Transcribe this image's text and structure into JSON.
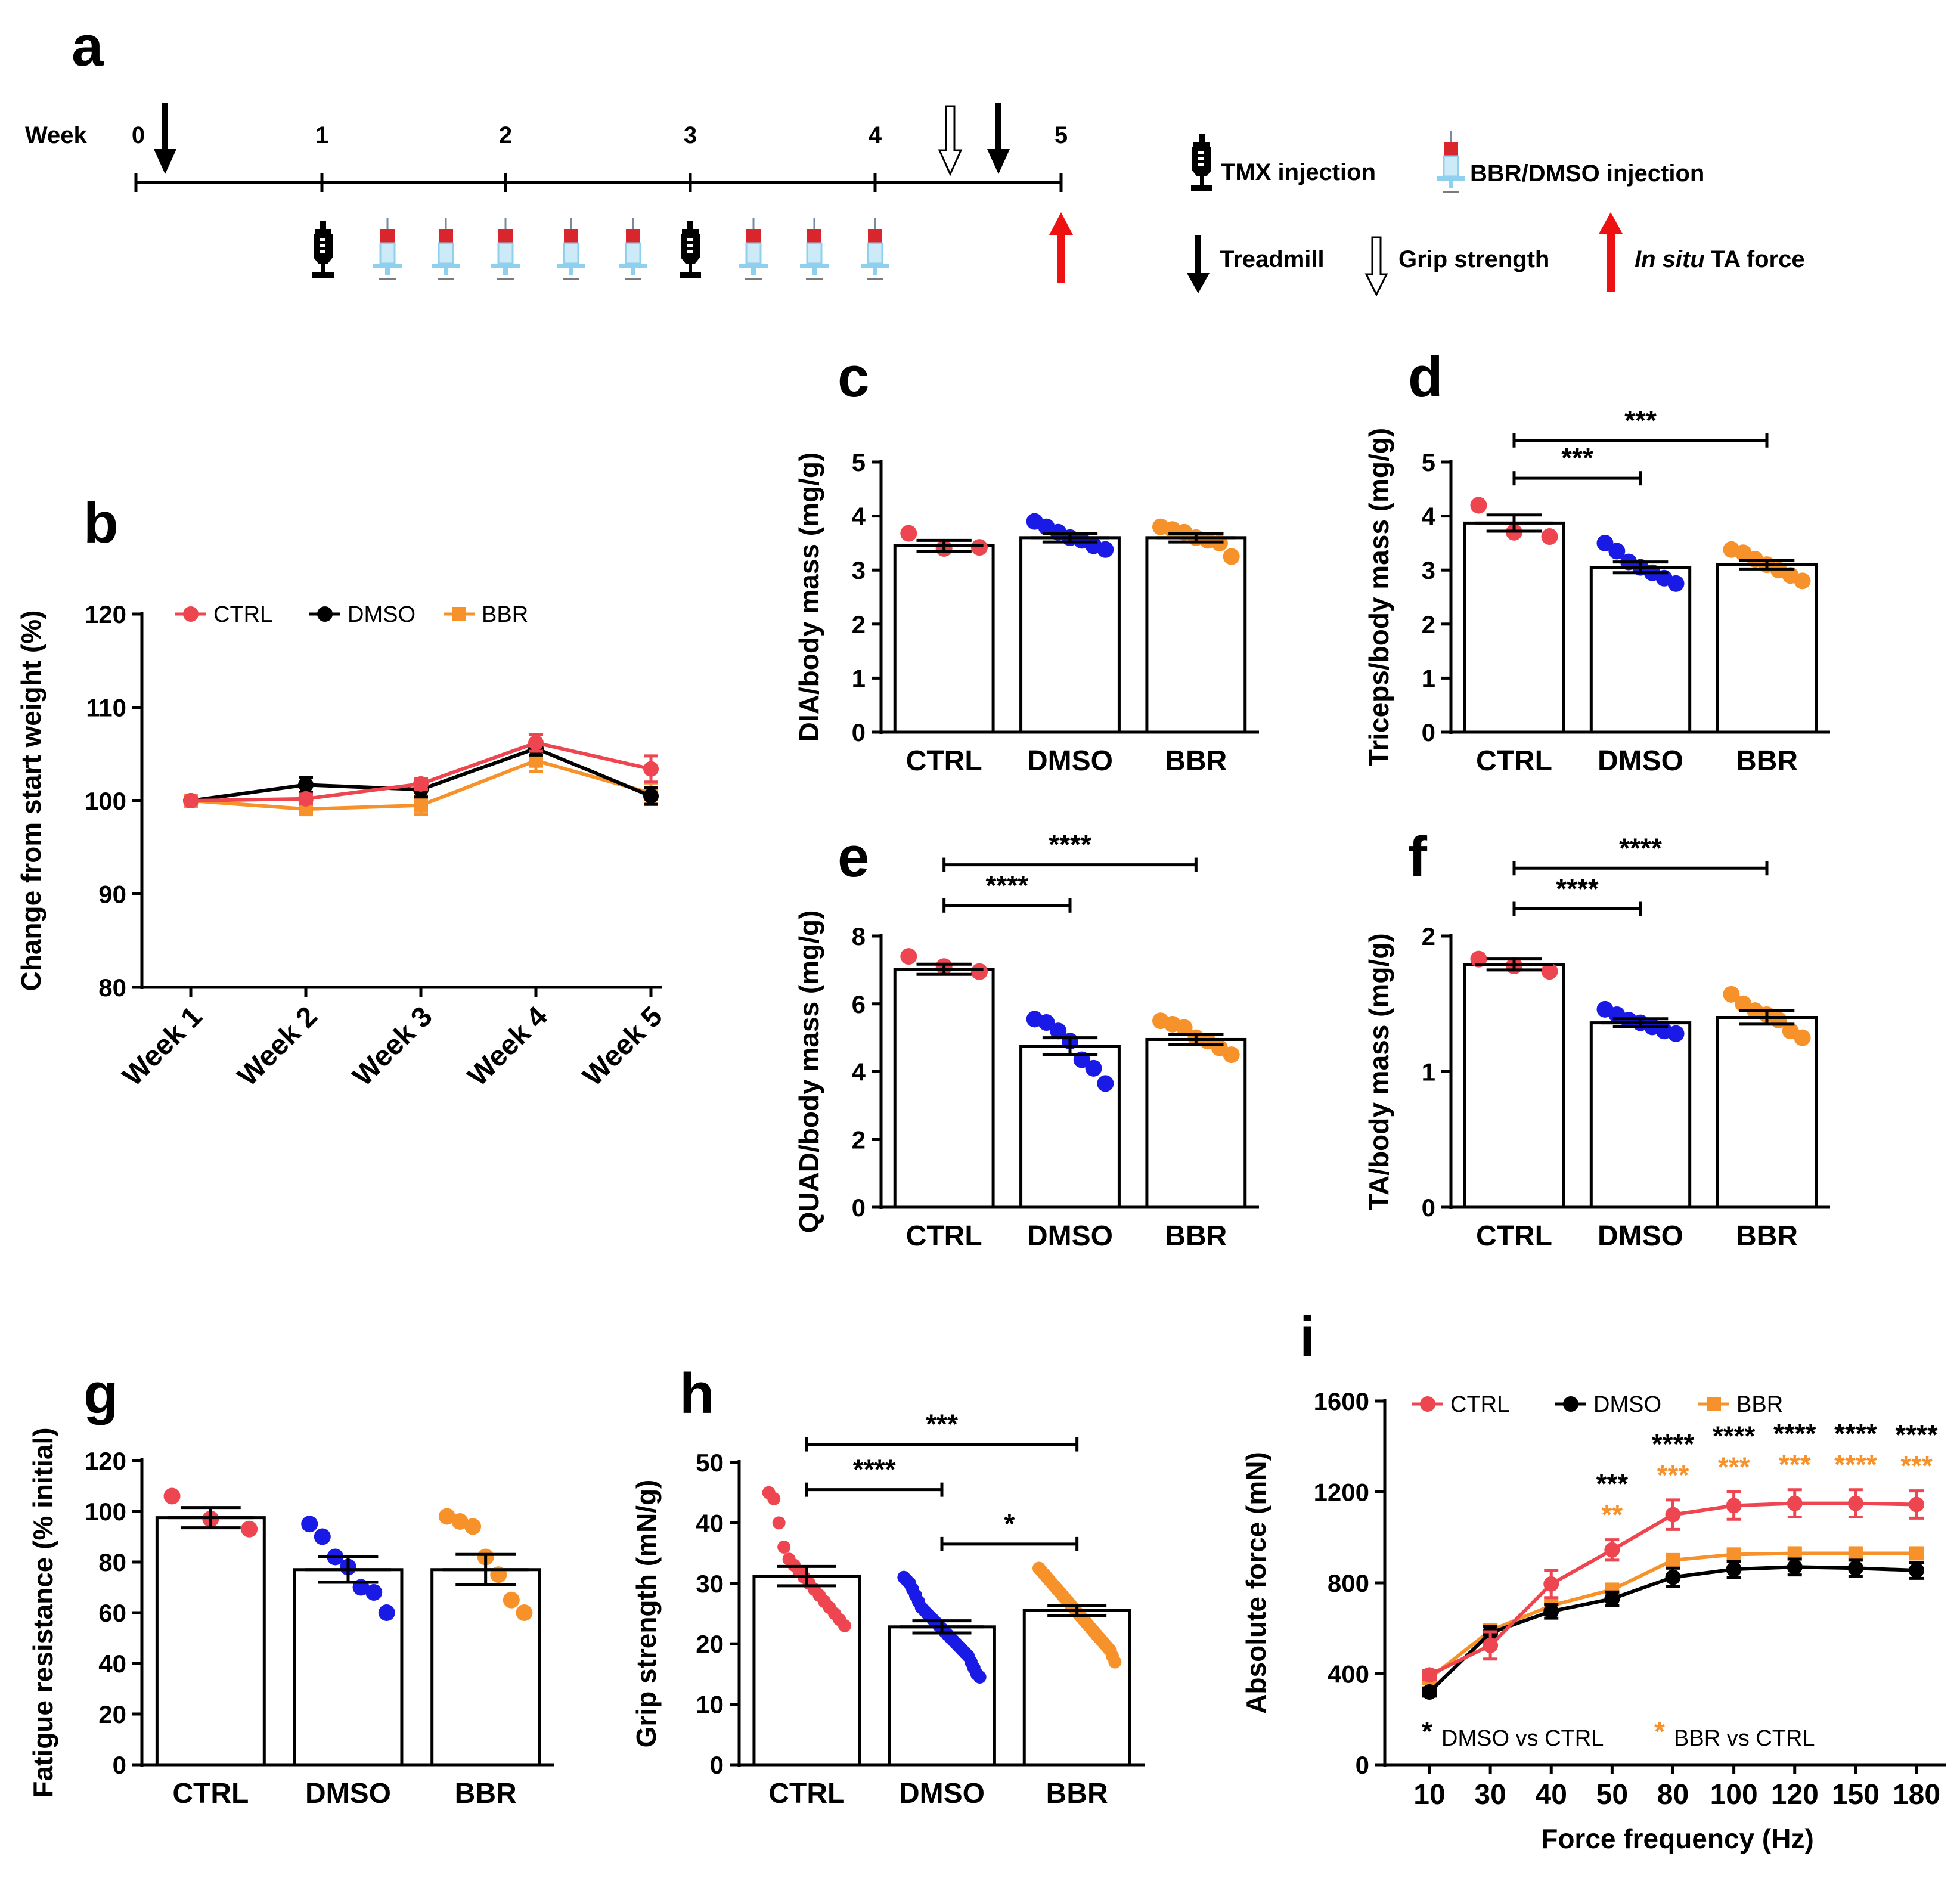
{
  "colors": {
    "ctrl": "#ee4650",
    "dmso": "#1a1ae6",
    "bbr": "#f7912a",
    "black": "#000000",
    "red_arrow": "#ee1111",
    "syringe_blue": "#8fd0ee",
    "syringe_red": "#d8262c"
  },
  "panel_a": {
    "label": "a",
    "week_label": "Week",
    "weeks": [
      "0",
      "1",
      "2",
      "3",
      "4",
      "5"
    ],
    "legend": {
      "tmx": "TMX injection",
      "bbr_dmso": "BBR/DMSO injection",
      "treadmill": "Treadmill",
      "grip": "Grip strength",
      "insitu_italic": "In situ",
      "insitu_rest": "TA force"
    }
  },
  "panels": {
    "b": {
      "label": "b"
    },
    "c": {
      "label": "c"
    },
    "d": {
      "label": "d"
    },
    "e": {
      "label": "e"
    },
    "f": {
      "label": "f"
    },
    "g": {
      "label": "g"
    },
    "h": {
      "label": "h"
    },
    "i": {
      "label": "i"
    }
  },
  "chart_data": [
    {
      "id": "b",
      "type": "line",
      "ylabel": "Change from start weight (%)",
      "categories": [
        "Week 1",
        "Week 2",
        "Week 3",
        "Week 4",
        "Week 5"
      ],
      "yticks": [
        "80",
        "90",
        "100",
        "110",
        "120"
      ],
      "ylim": [
        80,
        120
      ],
      "legend": [
        "CTRL",
        "DMSO",
        "BBR"
      ],
      "series": [
        {
          "name": "CTRL",
          "values": [
            100,
            100.2,
            101.8,
            106.2,
            103.4
          ],
          "err": [
            0.3,
            0.5,
            0.6,
            0.9,
            1.4
          ]
        },
        {
          "name": "DMSO",
          "values": [
            100,
            101.7,
            101.2,
            105.6,
            100.5
          ],
          "err": [
            0.3,
            0.8,
            0.8,
            0.7,
            0.9
          ]
        },
        {
          "name": "BBR",
          "values": [
            100,
            99.1,
            99.5,
            104.3,
            100.8
          ],
          "err": [
            0.3,
            0.6,
            1.0,
            1.2,
            1.1
          ]
        }
      ]
    },
    {
      "id": "c",
      "type": "bar",
      "ylabel": "DIA/body mass (mg/g)",
      "categories": [
        "CTRL",
        "DMSO",
        "BBR"
      ],
      "yticks": [
        "0",
        "1",
        "2",
        "3",
        "4",
        "5"
      ],
      "ylim": [
        0,
        5
      ],
      "values": [
        3.45,
        3.6,
        3.6
      ],
      "err": [
        0.1,
        0.08,
        0.08
      ],
      "points": [
        [
          3.68,
          3.4,
          3.42
        ],
        [
          3.9,
          3.8,
          3.7,
          3.6,
          3.55,
          3.45,
          3.38
        ],
        [
          3.8,
          3.75,
          3.7,
          3.6,
          3.55,
          3.5,
          3.25
        ]
      ],
      "sig": []
    },
    {
      "id": "d",
      "type": "bar",
      "ylabel": "Triceps/body mass (mg/g)",
      "categories": [
        "CTRL",
        "DMSO",
        "BBR"
      ],
      "yticks": [
        "0",
        "1",
        "2",
        "3",
        "4",
        "5"
      ],
      "ylim": [
        0,
        5
      ],
      "values": [
        3.87,
        3.05,
        3.1
      ],
      "err": [
        0.15,
        0.1,
        0.08
      ],
      "points": [
        [
          4.2,
          3.7,
          3.62
        ],
        [
          3.5,
          3.35,
          3.15,
          3.05,
          2.95,
          2.85,
          2.75
        ],
        [
          3.38,
          3.32,
          3.2,
          3.1,
          3.0,
          2.9,
          2.8
        ]
      ],
      "sig": [
        {
          "from": 0,
          "to": 1,
          "level": 4.7,
          "label": "***",
          "color": "#000000"
        },
        {
          "from": 0,
          "to": 2,
          "level": 5.4,
          "label": "***",
          "color": "#000000"
        }
      ]
    },
    {
      "id": "e",
      "type": "bar",
      "ylabel": "QUAD/body mass (mg/g)",
      "categories": [
        "CTRL",
        "DMSO",
        "BBR"
      ],
      "yticks": [
        "0",
        "2",
        "4",
        "6",
        "8"
      ],
      "ylim": [
        0,
        8
      ],
      "values": [
        7.02,
        4.75,
        4.95
      ],
      "err": [
        0.15,
        0.25,
        0.15
      ],
      "points": [
        [
          7.4,
          7.1,
          6.95
        ],
        [
          5.55,
          5.45,
          5.2,
          4.9,
          4.35,
          4.1,
          3.65
        ],
        [
          5.5,
          5.4,
          5.3,
          5.0,
          4.9,
          4.7,
          4.5
        ]
      ],
      "sig": [
        {
          "from": 0,
          "to": 1,
          "level": 8.9,
          "label": "****",
          "color": "#000000"
        },
        {
          "from": 0,
          "to": 2,
          "level": 10.1,
          "label": "****",
          "color": "#000000"
        }
      ]
    },
    {
      "id": "f",
      "type": "bar",
      "ylabel": "TA/body mass (mg/g)",
      "categories": [
        "CTRL",
        "DMSO",
        "BBR"
      ],
      "yticks": [
        "0",
        "1",
        "2"
      ],
      "ylim": [
        0,
        2
      ],
      "values": [
        1.79,
        1.36,
        1.4
      ],
      "err": [
        0.04,
        0.03,
        0.05
      ],
      "points": [
        [
          1.83,
          1.78,
          1.74
        ],
        [
          1.46,
          1.42,
          1.38,
          1.36,
          1.33,
          1.3,
          1.28
        ],
        [
          1.57,
          1.5,
          1.45,
          1.42,
          1.38,
          1.3,
          1.25
        ]
      ],
      "sig": [
        {
          "from": 0,
          "to": 1,
          "level": 2.2,
          "label": "****",
          "color": "#000000"
        },
        {
          "from": 0,
          "to": 2,
          "level": 2.5,
          "label": "****",
          "color": "#000000"
        }
      ]
    },
    {
      "id": "g",
      "type": "bar",
      "ylabel": "Fatigue resistance (% initial)",
      "categories": [
        "CTRL",
        "DMSO",
        "BBR"
      ],
      "yticks": [
        "0",
        "20",
        "40",
        "60",
        "80",
        "100",
        "120"
      ],
      "ylim": [
        0,
        120
      ],
      "values": [
        97.5,
        77,
        77
      ],
      "err": [
        4,
        5,
        6
      ],
      "points": [
        [
          106,
          97,
          93
        ],
        [
          95,
          90,
          82,
          78,
          70,
          68,
          60
        ],
        [
          98,
          96,
          94,
          82,
          75,
          65,
          60
        ]
      ],
      "sig": []
    },
    {
      "id": "h",
      "type": "bar",
      "ylabel": "Grip strength (mN/g)",
      "categories": [
        "CTRL",
        "DMSO",
        "BBR"
      ],
      "yticks": [
        "0",
        "10",
        "20",
        "30",
        "40",
        "50"
      ],
      "ylim": [
        0,
        50
      ],
      "values": [
        31.2,
        22.8,
        25.5
      ],
      "err": [
        1.6,
        1.0,
        0.8
      ],
      "points": [
        [
          45,
          44,
          40,
          36,
          34,
          33,
          32,
          31,
          30,
          29,
          28,
          27,
          26,
          25,
          24,
          23
        ],
        [
          31,
          30.5,
          30,
          29,
          28,
          27,
          26,
          25.5,
          25,
          24.5,
          24,
          23.5,
          23,
          22.5,
          22,
          21.5,
          21,
          20.5,
          20,
          19.5,
          19,
          18.5,
          18,
          17,
          16,
          15,
          14.5
        ],
        [
          32.5,
          32,
          31.5,
          31,
          30.5,
          30,
          29.5,
          29,
          28.5,
          28,
          27.5,
          27,
          26.5,
          26,
          25.5,
          25,
          24.5,
          24,
          23.5,
          23,
          22.5,
          22,
          21.5,
          21,
          20.5,
          20,
          19.5,
          19,
          18,
          17
        ]
      ],
      "sig": [
        {
          "from": 0,
          "to": 1,
          "level": 45.5,
          "label": "****",
          "color": "#000000"
        },
        {
          "from": 1,
          "to": 2,
          "level": 36.5,
          "label": "*",
          "color": "#000000"
        },
        {
          "from": 0,
          "to": 2,
          "level": 53,
          "label": "***",
          "color": "#000000"
        }
      ]
    },
    {
      "id": "i",
      "type": "line",
      "ylabel": "Absolute force (mN)",
      "xlabel": "Force frequency (Hz)",
      "categories": [
        "10",
        "30",
        "40",
        "50",
        "80",
        "100",
        "120",
        "150",
        "180"
      ],
      "yticks": [
        "0",
        "400",
        "800",
        "1200",
        "1600"
      ],
      "ylim": [
        0,
        1600
      ],
      "legend": [
        "CTRL",
        "DMSO",
        "BBR"
      ],
      "series": [
        {
          "name": "CTRL",
          "values": [
            395,
            525,
            795,
            945,
            1100,
            1140,
            1150,
            1150,
            1145
          ],
          "err": [
            20,
            60,
            60,
            45,
            65,
            60,
            60,
            60,
            60
          ]
        },
        {
          "name": "DMSO",
          "values": [
            320,
            580,
            675,
            730,
            825,
            860,
            870,
            865,
            855
          ],
          "err": [
            18,
            30,
            30,
            30,
            40,
            35,
            35,
            35,
            35
          ]
        },
        {
          "name": "BBR",
          "values": [
            380,
            590,
            700,
            770,
            900,
            925,
            930,
            930,
            930
          ],
          "err": [
            15,
            25,
            20,
            20,
            20,
            18,
            18,
            18,
            18
          ]
        }
      ],
      "sig_dmso": [
        "",
        "",
        "",
        "***",
        "****",
        "****",
        "****",
        "****",
        "****"
      ],
      "sig_bbr": [
        "",
        "",
        "",
        "**",
        "***",
        "***",
        "***",
        "****",
        "***"
      ],
      "footnote_dmso": "DMSO vs CTRL",
      "footnote_bbr": "BBR vs CTRL",
      "footnote_star": "*"
    }
  ]
}
